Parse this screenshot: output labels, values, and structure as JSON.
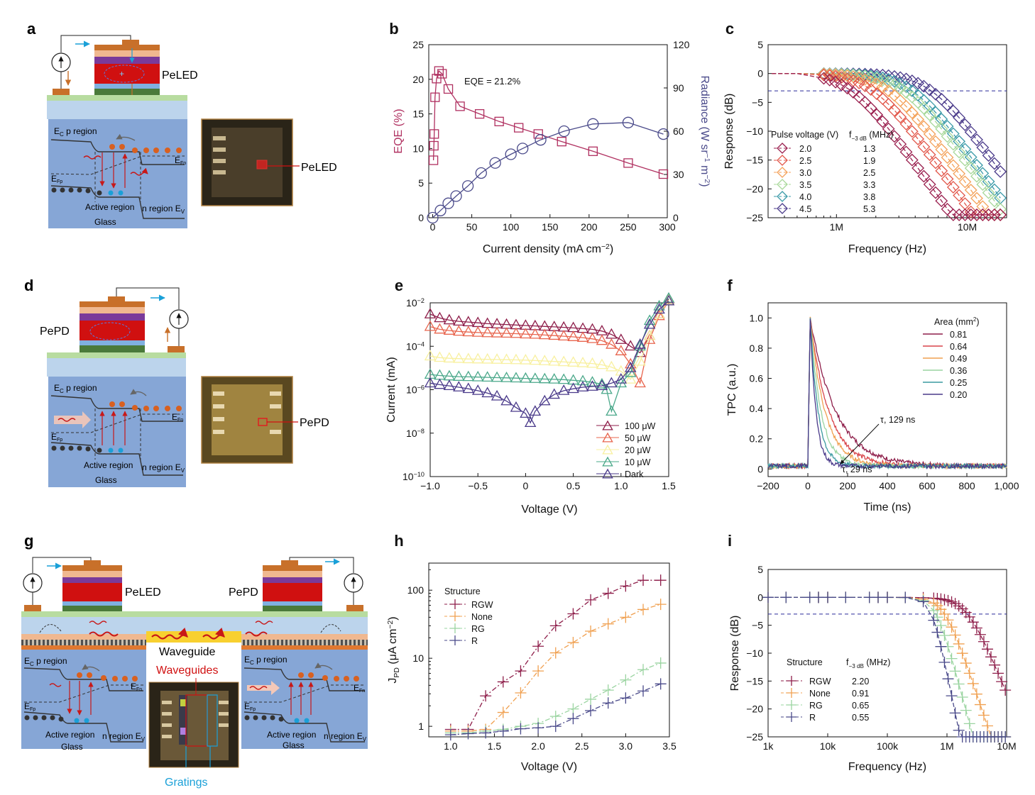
{
  "panels": {
    "a": {
      "label": "a",
      "device_label": "PeLED",
      "photo_label": "PeLED",
      "band": {
        "ec_p": "E",
        "ec_p_sub": "C",
        "ec_p_text": " p region",
        "efn": "E",
        "efn_sub": "Fn",
        "efp": "E",
        "efp_sub": "Fp",
        "active": "Active region",
        "n_region": "n region ",
        "ev": "E",
        "ev_sub": "V",
        "glass": "Glass"
      }
    },
    "d": {
      "label": "d",
      "device_label": "PePD",
      "photo_label": "PePD",
      "band": {
        "ec_p": "E",
        "ec_p_sub": "C",
        "ec_p_text": " p region",
        "efn": "E",
        "efn_sub": "Fn",
        "efp": "E",
        "efp_sub": "Fp",
        "active": "Active region",
        "n_region": "n region ",
        "ev": "E",
        "ev_sub": "V",
        "glass": "Glass"
      }
    },
    "g": {
      "label": "g",
      "led_label": "PeLED",
      "pd_label": "PePD",
      "waveguide": "Waveguide",
      "waveguides": "Waveguides",
      "gratings": "Gratings",
      "band_left": {
        "ec_p": "E",
        "ec_p_sub": "C",
        "ec_p_text": " p region",
        "efn": "E",
        "efn_sub": "Fn",
        "efp": "E",
        "efp_sub": "Fp",
        "active": "Active region",
        "n_region": "n region ",
        "ev": "E",
        "ev_sub": "V",
        "glass": "Glass"
      },
      "band_right": {
        "ec_p": "E",
        "ec_p_sub": "C",
        "ec_p_text": " p region",
        "efn": "E",
        "efn_sub": "Fn",
        "efp": "E",
        "efp_sub": "Fp",
        "active": "Active region",
        "n_region": "n region ",
        "ev": "E",
        "ev_sub": "V",
        "glass": "Glass"
      }
    }
  },
  "colors": {
    "ito_orange": "#c8702a",
    "red_layer": "#d01010",
    "purple_layer": "#7a3a9a",
    "green_layer": "#4a7a3a",
    "blue_bg": "#86a6d6",
    "glass": "#bcd4ec",
    "cyan_arrow": "#1aa0d8",
    "wave_red": "#c81818"
  },
  "chart_data": [
    {
      "panel": "b",
      "type": "scatter",
      "label": "b",
      "xlabel": "Current density (mA cm",
      "xlabel_sup": "−2",
      "xlabel_end": ")",
      "ylabel": "EQE (%)",
      "y2label": "Radiance (W sr",
      "y2label_sup1": "−1",
      "y2label_mid": " m",
      "y2label_sup2": "−2",
      "y2label_end": ")",
      "xlim": [
        -5,
        300
      ],
      "ylim": [
        0,
        25
      ],
      "y2lim": [
        0,
        120
      ],
      "xticks": [
        0,
        50,
        100,
        150,
        200,
        250,
        300
      ],
      "yticks": [
        0,
        5,
        10,
        15,
        20,
        25
      ],
      "y2ticks": [
        0,
        30,
        60,
        90,
        120
      ],
      "annotation": "EQE = 21.2%",
      "series": [
        {
          "axis": "left",
          "marker": "square",
          "color": "#b03060",
          "x": [
            1,
            1.5,
            2,
            3,
            5,
            8,
            12,
            20,
            35,
            60,
            85,
            110,
            135,
            165,
            205,
            250,
            295
          ],
          "y": [
            8.3,
            10.4,
            12.1,
            17.4,
            20.1,
            21.2,
            20.8,
            18.6,
            16.1,
            15.0,
            13.9,
            13.0,
            12.1,
            11.0,
            9.6,
            7.9,
            6.3
          ]
        },
        {
          "axis": "right",
          "marker": "circle",
          "color": "#4a4a8a",
          "x": [
            0,
            10,
            20,
            30,
            45,
            62,
            80,
            100,
            115,
            138,
            168,
            205,
            250,
            295
          ],
          "y": [
            0,
            5,
            10,
            15,
            22,
            31,
            38,
            44,
            48,
            54,
            60,
            65,
            66,
            58
          ]
        }
      ]
    },
    {
      "panel": "c",
      "type": "scatter",
      "label": "c",
      "xlabel": "Frequency (Hz)",
      "ylabel": "Response (dB)",
      "xscale": "log",
      "xlim": [
        300000,
        20000000
      ],
      "ylim": [
        -25,
        5
      ],
      "xticks": [
        {
          "v": 1000000,
          "label": "1M"
        },
        {
          "v": 10000000,
          "label": "10M"
        }
      ],
      "yticks": [
        5,
        0,
        -5,
        -10,
        -15,
        -20,
        -25
      ],
      "ref_line": -3,
      "legend_title": "Pulse voltage (V)",
      "legend_title2": "f",
      "legend_title2_sub": "−3 dB",
      "legend_title2_end": " (MHz)",
      "series": [
        {
          "name": "2.0",
          "f3db": "1.3",
          "color": "#9a1f4e",
          "f_cut": 1300000
        },
        {
          "name": "2.5",
          "f3db": "1.9",
          "color": "#e2574a",
          "f_cut": 1900000
        },
        {
          "name": "3.0",
          "f3db": "2.5",
          "color": "#f4a25a",
          "f_cut": 2500000
        },
        {
          "name": "3.5",
          "f3db": "3.3",
          "color": "#a8d89a",
          "f_cut": 3300000
        },
        {
          "name": "4.0",
          "f3db": "3.8",
          "color": "#3a9aa8",
          "f_cut": 3800000
        },
        {
          "name": "4.5",
          "f3db": "5.3",
          "color": "#4a3a8a",
          "f_cut": 5300000
        }
      ]
    },
    {
      "panel": "e",
      "type": "line",
      "label": "e",
      "xlabel": "Voltage (V)",
      "ylabel": "Current (mA)",
      "yscale": "log",
      "xlim": [
        -1,
        1.5
      ],
      "ylim": [
        1e-10,
        0.01
      ],
      "xticks": [
        -1.0,
        -0.5,
        0,
        0.5,
        1.0,
        1.5
      ],
      "xticklabels": [
        "−1.0",
        "−0.5",
        "0",
        "0.5",
        "1.0",
        "1.5"
      ],
      "yticks": [
        {
          "v": 1e-10,
          "b": "10",
          "e": "−10"
        },
        {
          "v": 1e-08,
          "b": "10",
          "e": "−8"
        },
        {
          "v": 1e-06,
          "b": "10",
          "e": "−6"
        },
        {
          "v": 0.0001,
          "b": "10",
          "e": "−4"
        },
        {
          "v": 0.01,
          "b": "10",
          "e": "−2"
        }
      ],
      "series": [
        {
          "name": "100 μW",
          "color": "#8e1e4a",
          "x": [
            -1,
            -0.9,
            -0.8,
            -0.7,
            -0.6,
            -0.5,
            -0.4,
            -0.3,
            -0.2,
            -0.1,
            0,
            0.1,
            0.2,
            0.3,
            0.4,
            0.5,
            0.6,
            0.7,
            0.8,
            0.9,
            1.0,
            1.1,
            1.2,
            1.3,
            1.4,
            1.5
          ],
          "y": [
            0.003,
            0.002,
            0.0016,
            0.0014,
            0.0013,
            0.0012,
            0.0011,
            0.00105,
            0.001,
            0.00095,
            0.0009,
            0.00086,
            0.00082,
            0.00078,
            0.00074,
            0.0007,
            0.00065,
            0.0006,
            0.0005,
            0.00035,
            0.0002,
            0.0001,
            5e-05,
            0.0003,
            0.003,
            0.015
          ]
        },
        {
          "name": "50 μW",
          "color": "#e8654e",
          "x": [
            -1,
            -0.9,
            -0.8,
            -0.7,
            -0.6,
            -0.5,
            -0.4,
            -0.3,
            -0.2,
            -0.1,
            0,
            0.1,
            0.2,
            0.3,
            0.4,
            0.5,
            0.6,
            0.7,
            0.8,
            0.9,
            1.0,
            1.1,
            1.2,
            1.3,
            1.4,
            1.5
          ],
          "y": [
            0.0008,
            0.0006,
            0.00053,
            0.00048,
            0.00045,
            0.00043,
            0.00041,
            0.0004,
            0.00039,
            0.00038,
            0.00036,
            0.00035,
            0.00033,
            0.00031,
            0.00029,
            0.00027,
            0.00025,
            0.00022,
            0.00018,
            0.00012,
            6e-05,
            1.5e-05,
            2e-06,
            0.0002,
            0.0025,
            0.012
          ]
        },
        {
          "name": "20 μW",
          "color": "#f8f0a0",
          "x": [
            -1,
            -0.9,
            -0.8,
            -0.7,
            -0.6,
            -0.5,
            -0.4,
            -0.3,
            -0.2,
            -0.1,
            0,
            0.1,
            0.2,
            0.3,
            0.4,
            0.5,
            0.6,
            0.7,
            0.8,
            0.9,
            1.0,
            1.1,
            1.2,
            1.3,
            1.4,
            1.5
          ],
          "y": [
            3.5e-05,
            3e-05,
            2.8e-05,
            2.7e-05,
            2.6e-05,
            2.55e-05,
            2.5e-05,
            2.45e-05,
            2.4e-05,
            2.35e-05,
            2.3e-05,
            2.2e-05,
            2.1e-05,
            2e-05,
            1.9e-05,
            1.8e-05,
            1.7e-05,
            1.6e-05,
            1.4e-05,
            1.1e-05,
            7e-06,
            3e-06,
            2e-05,
            0.0003,
            0.003,
            0.013
          ]
        },
        {
          "name": "10 μW",
          "color": "#4aa88a",
          "x": [
            -1,
            -0.9,
            -0.8,
            -0.7,
            -0.6,
            -0.5,
            -0.4,
            -0.3,
            -0.2,
            -0.1,
            0,
            0.1,
            0.2,
            0.3,
            0.4,
            0.5,
            0.6,
            0.7,
            0.8,
            0.85,
            0.9,
            1.0,
            1.1,
            1.2,
            1.3,
            1.4,
            1.5
          ],
          "y": [
            5e-06,
            4.5e-06,
            4.2e-06,
            4e-06,
            3.9e-06,
            3.8e-06,
            3.7e-06,
            3.6e-06,
            3.5e-06,
            3.4e-06,
            3.3e-06,
            3.2e-06,
            3.1e-06,
            3e-06,
            2.9e-06,
            2.7e-06,
            2.5e-06,
            2.2e-06,
            1.8e-06,
            1e-06,
            1e-07,
            2e-06,
            6e-06,
            0.0001,
            0.0015,
            0.007,
            0.016
          ]
        },
        {
          "name": "Dark",
          "color": "#4a3a8a",
          "x": [
            -1,
            -0.9,
            -0.8,
            -0.7,
            -0.6,
            -0.5,
            -0.4,
            -0.3,
            -0.2,
            -0.1,
            0,
            0.05,
            0.1,
            0.2,
            0.3,
            0.4,
            0.5,
            0.6,
            0.7,
            0.8,
            0.9,
            1.0,
            1.1,
            1.2,
            1.3,
            1.4,
            1.5
          ],
          "y": [
            2e-06,
            1.7e-06,
            1.5e-06,
            1.3e-06,
            1.1e-06,
            9e-07,
            7e-07,
            5e-07,
            3e-07,
            1.5e-07,
            8e-08,
            3e-08,
            1e-07,
            3e-07,
            6e-07,
            9e-07,
            1.1e-06,
            1.3e-06,
            1.4e-06,
            1.5e-06,
            2e-06,
            3e-06,
            1e-05,
            0.00012,
            0.001,
            0.005,
            0.012
          ]
        }
      ]
    },
    {
      "panel": "f",
      "type": "line",
      "label": "f",
      "xlabel": "Time (ns)",
      "ylabel": "TPC (a.u.)",
      "xlim": [
        -200,
        1000
      ],
      "ylim": [
        -0.05,
        1.1
      ],
      "xticks": [
        -200,
        0,
        200,
        400,
        600,
        800,
        1000
      ],
      "xticklabels": [
        "−200",
        "0",
        "200",
        "400",
        "600",
        "800",
        "1,000"
      ],
      "yticks": [
        0,
        0.2,
        0.4,
        0.6,
        0.8,
        1.0
      ],
      "yticklabels": [
        "0",
        "0.2",
        "0.4",
        "0.6",
        "0.8",
        "1.0"
      ],
      "legend_title": "Area (mm",
      "legend_title_sup": "2",
      "legend_title_end": ")",
      "annotation_1": "τ, 129 ns",
      "annotation_2": "τ, 29 ns",
      "series": [
        {
          "name": "0.81",
          "color": "#8e1e4a",
          "tau": 129
        },
        {
          "name": "0.64",
          "color": "#d8444a",
          "tau": 95
        },
        {
          "name": "0.49",
          "color": "#f0a050",
          "tau": 75
        },
        {
          "name": "0.36",
          "color": "#9ad4a0",
          "tau": 55
        },
        {
          "name": "0.25",
          "color": "#3a9aa0",
          "tau": 40
        },
        {
          "name": "0.20",
          "color": "#4a3a8a",
          "tau": 29
        }
      ]
    },
    {
      "panel": "h",
      "type": "scatter",
      "label": "h",
      "xlabel": "Voltage (V)",
      "ylabel": "J",
      "ylabel_sub": "PD",
      "ylabel_end": " (μA cm",
      "ylabel_sup": "−2",
      "ylabel_close": ")",
      "yscale": "log",
      "xlim": [
        0.75,
        3.5
      ],
      "ylim": [
        0.7,
        250
      ],
      "xticks": [
        1.0,
        1.5,
        2.0,
        2.5,
        3.0,
        3.5
      ],
      "xticklabels": [
        "1.0",
        "1.5",
        "2.0",
        "2.5",
        "3.0",
        "3.5"
      ],
      "yticks": [
        {
          "v": 1,
          "label": "1"
        },
        {
          "v": 10,
          "label": "10"
        },
        {
          "v": 100,
          "label": "100"
        }
      ],
      "legend_title": "Structure",
      "series": [
        {
          "name": "RGW",
          "color": "#8e1e4a",
          "x": [
            1.0,
            1.2,
            1.4,
            1.6,
            1.8,
            2.0,
            2.2,
            2.4,
            2.6,
            2.8,
            3.0,
            3.2,
            3.4
          ],
          "y": [
            0.9,
            0.9,
            2.8,
            4.5,
            6.5,
            15,
            30,
            45,
            72,
            90,
            115,
            140,
            140
          ]
        },
        {
          "name": "None",
          "color": "#f0a050",
          "x": [
            1.0,
            1.2,
            1.4,
            1.6,
            1.8,
            2.0,
            2.2,
            2.4,
            2.6,
            2.8,
            3.0,
            3.2,
            3.4
          ],
          "y": [
            0.85,
            0.85,
            0.9,
            1.6,
            3.1,
            6.5,
            12,
            17,
            25,
            32,
            40,
            52,
            62
          ]
        },
        {
          "name": "RG",
          "color": "#9ad4a0",
          "x": [
            1.0,
            1.2,
            1.4,
            1.6,
            1.8,
            2.0,
            2.2,
            2.4,
            2.6,
            2.8,
            3.0,
            3.2,
            3.4
          ],
          "y": [
            0.8,
            0.8,
            0.85,
            0.9,
            1.0,
            1.1,
            1.4,
            1.8,
            2.5,
            3.4,
            4.8,
            6.8,
            8.5
          ]
        },
        {
          "name": "R",
          "color": "#4a4a8a",
          "x": [
            1.0,
            1.2,
            1.4,
            1.6,
            1.8,
            2.0,
            2.2,
            2.4,
            2.6,
            2.8,
            3.0,
            3.2,
            3.4
          ],
          "y": [
            0.75,
            0.78,
            0.8,
            0.85,
            0.92,
            0.95,
            1.0,
            1.3,
            1.7,
            2.2,
            2.6,
            3.3,
            4.2
          ]
        }
      ]
    },
    {
      "panel": "i",
      "type": "scatter",
      "label": "i",
      "xlabel": "Frequency (Hz)",
      "ylabel": "Response (dB)",
      "xscale": "log",
      "xlim": [
        1000,
        10000000
      ],
      "ylim": [
        -25,
        5
      ],
      "xticks": [
        {
          "v": 1000,
          "label": "1k"
        },
        {
          "v": 10000,
          "label": "10k"
        },
        {
          "v": 100000,
          "label": "100k"
        },
        {
          "v": 1000000,
          "label": "1M"
        },
        {
          "v": 10000000,
          "label": "10M"
        }
      ],
      "yticks": [
        5,
        0,
        -5,
        -10,
        -15,
        -20,
        -25
      ],
      "ref_line": -3,
      "legend_title": "Structure",
      "legend_title2": "f",
      "legend_title2_sub": "−3 dB",
      "legend_title2_end": " (MHz)",
      "series": [
        {
          "name": "RGW",
          "f3db": "2.20",
          "color": "#8e1e4a",
          "f_cut": 2200000
        },
        {
          "name": "None",
          "f3db": "0.91",
          "color": "#f0a050",
          "f_cut": 910000
        },
        {
          "name": "RG",
          "f3db": "0.65",
          "color": "#9ad4a0",
          "f_cut": 650000
        },
        {
          "name": "R",
          "f3db": "0.55",
          "color": "#4a4a8a",
          "f_cut": 550000
        }
      ]
    }
  ]
}
